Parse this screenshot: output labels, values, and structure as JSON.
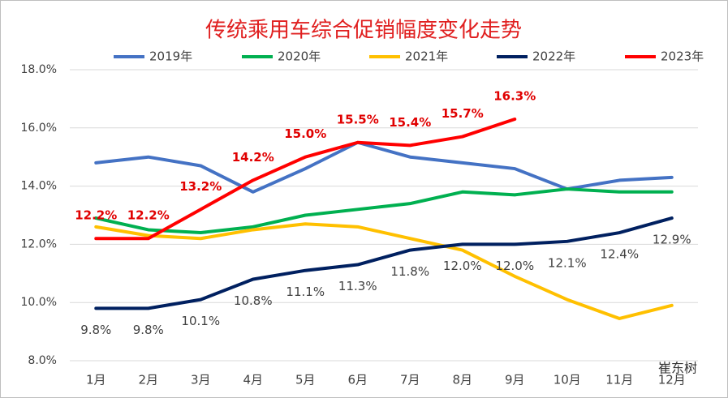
{
  "chart_data": {
    "type": "line",
    "title": "传统乘用车综合促销幅度变化走势",
    "categories": [
      "1月",
      "2月",
      "3月",
      "4月",
      "5月",
      "6月",
      "7月",
      "8月",
      "9月",
      "10月",
      "11月",
      "12月"
    ],
    "series": [
      {
        "name": "2019年",
        "color": "#4472c4",
        "values": [
          14.8,
          15.0,
          14.7,
          13.8,
          14.6,
          15.5,
          15.0,
          14.8,
          14.6,
          13.9,
          14.2,
          14.3
        ]
      },
      {
        "name": "2020年",
        "color": "#00b050",
        "values": [
          12.9,
          12.5,
          12.4,
          12.6,
          13.0,
          13.2,
          13.4,
          13.8,
          13.7,
          13.9,
          13.8,
          13.8
        ]
      },
      {
        "name": "2021年",
        "color": "#ffc000",
        "values": [
          12.6,
          12.3,
          12.2,
          12.5,
          12.7,
          12.6,
          12.2,
          11.8,
          10.9,
          10.1,
          9.45,
          9.9
        ]
      },
      {
        "name": "2022年",
        "color": "#002060",
        "values": [
          9.8,
          9.8,
          10.1,
          10.8,
          11.1,
          11.3,
          11.8,
          12.0,
          12.0,
          12.1,
          12.4,
          12.9
        ],
        "value_labels": [
          "9.8%",
          "9.8%",
          "10.1%",
          "10.8%",
          "11.1%",
          "11.3%",
          "11.8%",
          "12.0%",
          "12.0%",
          "12.1%",
          "12.4%",
          "12.9%"
        ]
      },
      {
        "name": "2023年",
        "color": "#ff0000",
        "values": [
          12.2,
          12.2,
          13.2,
          14.2,
          15.0,
          15.5,
          15.4,
          15.7,
          16.3,
          null,
          null,
          null
        ],
        "value_labels": [
          "12.2%",
          "12.2%",
          "13.2%",
          "14.2%",
          "15.0%",
          "15.5%",
          "15.4%",
          "15.7%",
          "16.3%",
          null,
          null,
          null
        ]
      }
    ],
    "ylim": [
      8,
      18
    ],
    "yticks": [
      {
        "value": 8,
        "label": "8.0%"
      },
      {
        "value": 10,
        "label": "10.0%"
      },
      {
        "value": 12,
        "label": "12.0%"
      },
      {
        "value": 14,
        "label": "14.0%"
      },
      {
        "value": 16,
        "label": "16.0%"
      },
      {
        "value": 18,
        "label": "18.0%"
      }
    ],
    "grid": true,
    "legend": "top",
    "watermark": "崔东树"
  }
}
